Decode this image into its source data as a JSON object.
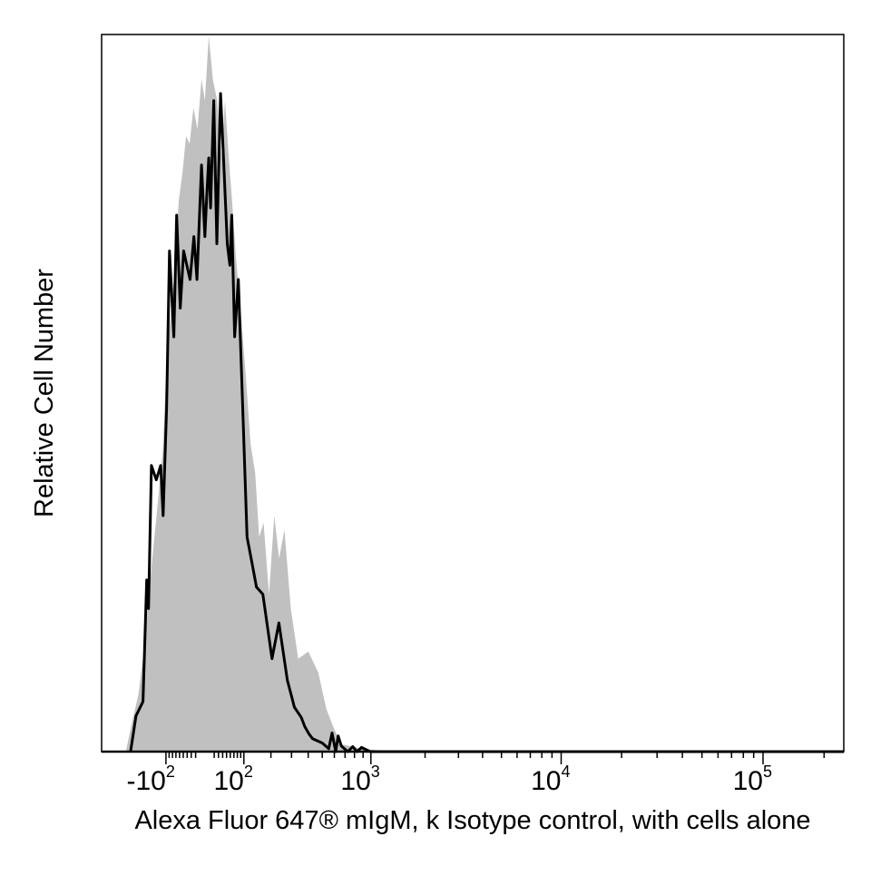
{
  "chart_data": {
    "type": "area",
    "xlabel": "Alexa Fluor 647® mIgM, k Isotype control, with cells alone",
    "ylabel": "Relative Cell Number",
    "x_scale": "biexponential",
    "xlim": [
      -400,
      250000
    ],
    "ylim": [
      0,
      1
    ],
    "x_ticks": [
      {
        "value": -100,
        "base": "-10",
        "exp": "2"
      },
      {
        "value": 100,
        "base": "10",
        "exp": "2"
      },
      {
        "value": 1000,
        "base": "10",
        "exp": "3"
      },
      {
        "value": 10000,
        "base": "10",
        "exp": "4"
      },
      {
        "value": 100000,
        "base": "10",
        "exp": "5"
      }
    ],
    "grid": false,
    "colors": {
      "filled_series": "#c0c0c0",
      "outline_series": "#000000"
    },
    "series": [
      {
        "style": "filled",
        "x": [
          -261,
          -232,
          -202,
          -176,
          -152,
          -129,
          -110,
          -97,
          -84,
          -72,
          -62,
          -52,
          -43,
          -34,
          -25,
          -16,
          -7,
          0,
          8,
          17,
          27,
          37,
          46,
          56,
          65,
          76,
          91,
          107,
          122,
          138,
          153,
          170,
          192,
          215,
          237,
          263,
          296,
          338,
          401,
          471,
          532,
          602,
          671,
          755,
          877,
          1105,
          1546,
          2500,
          8000,
          60000,
          250000
        ],
        "y": [
          0,
          0.04,
          0.08,
          0.15,
          0.25,
          0.34,
          0.42,
          0.55,
          0.62,
          0.68,
          0.77,
          0.81,
          0.86,
          0.85,
          0.9,
          0.87,
          0.94,
          0.91,
          1.0,
          0.94,
          0.91,
          0.83,
          0.91,
          0.83,
          0.77,
          0.69,
          0.61,
          0.52,
          0.43,
          0.39,
          0.3,
          0.32,
          0.22,
          0.33,
          0.27,
          0.31,
          0.2,
          0.13,
          0.14,
          0.11,
          0.06,
          0.03,
          0.01,
          0.008,
          0.004,
          0.002,
          0.001,
          0,
          0,
          0,
          0
        ]
      },
      {
        "style": "outline",
        "x": [
          -238,
          -213,
          -183,
          -168,
          -161,
          -150,
          -132,
          -117,
          -109,
          -98,
          -89,
          -76,
          -68,
          -58,
          -49,
          -41,
          -33,
          -24,
          -17,
          -7,
          0,
          4,
          8,
          12,
          19,
          26,
          35,
          43,
          52,
          59,
          64,
          72,
          83,
          97,
          110,
          124,
          143,
          167,
          205,
          236,
          278,
          316,
          356,
          378,
          404,
          430,
          500,
          552,
          580,
          612,
          634,
          664,
          728,
          780,
          830,
          880,
          990,
          1090,
          1150,
          1250,
          1320,
          1540,
          1720,
          1980,
          2160,
          2500,
          10000,
          250000
        ],
        "y": [
          0,
          0.05,
          0.07,
          0.24,
          0.2,
          0.4,
          0.38,
          0.4,
          0.33,
          0.48,
          0.7,
          0.58,
          0.75,
          0.62,
          0.7,
          0.68,
          0.66,
          0.72,
          0.66,
          0.82,
          0.72,
          0.78,
          0.83,
          0.76,
          0.91,
          0.71,
          0.92,
          0.82,
          0.71,
          0.68,
          0.75,
          0.58,
          0.66,
          0.47,
          0.3,
          0.27,
          0.23,
          0.22,
          0.13,
          0.18,
          0.1,
          0.062,
          0.048,
          0.035,
          0.025,
          0.018,
          0.012,
          0.004,
          0.026,
          0.0,
          0.022,
          0.008,
          0.0,
          0.007,
          0.0,
          0.006,
          0.0,
          0.0,
          0.0,
          0.0,
          0.0,
          0.0,
          0.0,
          0.0,
          0.0,
          0.0,
          0.0,
          0.0
        ]
      }
    ]
  }
}
